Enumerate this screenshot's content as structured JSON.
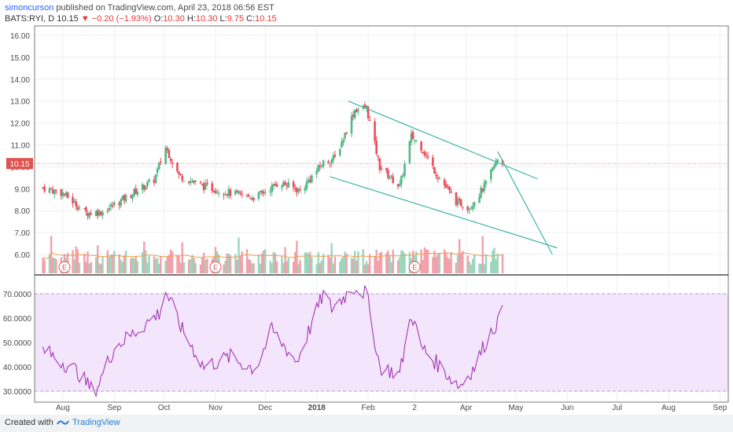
{
  "header": {
    "author": "simoncurson",
    "published": "published on TradingView.com, April 23, 2018 06:56 EST",
    "symbol": "BATS:RYI, D",
    "last": "10.15",
    "change": "−0.20 (−1.93%)",
    "o_label": "O:",
    "o_value": "10.30",
    "h_label": "H:",
    "h_value": "10.30",
    "l_label": "L:",
    "l_value": "9.75",
    "c_label": "C:",
    "c_value": "10.15"
  },
  "footer": {
    "created_with": "Created with",
    "brand": "TradingView"
  },
  "colors": {
    "up": "#53b987",
    "down": "#eb4d5c",
    "volume_up": "#9bd6bd",
    "volume_down": "#f2a0aa",
    "trendline": "#3cb5a5",
    "rsi": "#9c27b0",
    "rsi_band": "#f3e5fb",
    "ma": "#f0a04b"
  },
  "chart_data": [
    {
      "type": "candlestick",
      "title": "",
      "xlabel": "",
      "ylabel": "",
      "ylim": [
        5.2,
        16.4
      ],
      "yticks": [
        "16.00",
        "15.00",
        "14.00",
        "13.00",
        "12.00",
        "11.00",
        "10.00",
        "9.00",
        "8.00",
        "7.00",
        "6.00"
      ],
      "xticks": [
        "Aug",
        "Sep",
        "Oct",
        "Nov",
        "Dec",
        "2018",
        "Feb",
        "2",
        "Apr",
        "May",
        "Jun",
        "Jul",
        "Aug",
        "Sep"
      ],
      "last_price_label": "10.15",
      "earnings_markers": [
        "E",
        "E",
        "E"
      ],
      "earnings_marker_dates": [
        "2017-08-02",
        "2017-11-01",
        "2018-03-01"
      ],
      "close_anchors": [
        [
          "2017-07-20",
          9.05
        ],
        [
          "2017-08-01",
          8.8
        ],
        [
          "2017-08-15",
          7.9
        ],
        [
          "2017-08-25",
          7.95
        ],
        [
          "2017-09-10",
          8.7
        ],
        [
          "2017-09-25",
          9.4
        ],
        [
          "2017-10-02",
          10.9
        ],
        [
          "2017-10-10",
          9.6
        ],
        [
          "2017-10-25",
          9.1
        ],
        [
          "2017-11-10",
          8.8
        ],
        [
          "2017-11-25",
          8.6
        ],
        [
          "2017-12-10",
          9.3
        ],
        [
          "2017-12-22",
          8.9
        ],
        [
          "2018-01-05",
          10.2
        ],
        [
          "2018-01-12",
          10.4
        ],
        [
          "2018-01-24",
          12.6
        ],
        [
          "2018-01-31",
          12.7
        ],
        [
          "2018-02-08",
          10.0
        ],
        [
          "2018-02-20",
          9.1
        ],
        [
          "2018-02-27",
          11.4
        ],
        [
          "2018-03-05",
          10.9
        ],
        [
          "2018-03-14",
          9.7
        ],
        [
          "2018-03-26",
          8.4
        ],
        [
          "2018-04-03",
          8.15
        ],
        [
          "2018-04-12",
          9.1
        ],
        [
          "2018-04-20",
          10.35
        ],
        [
          "2018-04-23",
          10.15
        ]
      ],
      "rsi_anchors": [
        [
          "2017-07-20",
          47
        ],
        [
          "2017-08-10",
          38
        ],
        [
          "2017-08-20",
          29
        ],
        [
          "2017-09-01",
          48
        ],
        [
          "2017-09-15",
          55
        ],
        [
          "2017-09-28",
          62
        ],
        [
          "2017-10-02",
          71
        ],
        [
          "2017-10-12",
          55
        ],
        [
          "2017-10-25",
          40
        ],
        [
          "2017-11-10",
          44
        ],
        [
          "2017-11-25",
          39
        ],
        [
          "2017-12-05",
          55
        ],
        [
          "2017-12-20",
          42
        ],
        [
          "2018-01-05",
          70
        ],
        [
          "2018-01-10",
          64
        ],
        [
          "2018-01-24",
          73
        ],
        [
          "2018-01-31",
          70
        ],
        [
          "2018-02-08",
          40
        ],
        [
          "2018-02-20",
          37
        ],
        [
          "2018-02-27",
          62
        ],
        [
          "2018-03-05",
          48
        ],
        [
          "2018-03-15",
          41
        ],
        [
          "2018-03-28",
          32
        ],
        [
          "2018-04-06",
          40
        ],
        [
          "2018-04-14",
          52
        ],
        [
          "2018-04-23",
          62
        ]
      ],
      "trendlines": [
        {
          "from": [
            "2018-01-20",
            13.0
          ],
          "to": [
            "2018-05-14",
            9.45
          ]
        },
        {
          "from": [
            "2018-01-09",
            9.55
          ],
          "to": [
            "2018-05-26",
            6.3
          ]
        },
        {
          "from": [
            "2018-04-20",
            10.7
          ],
          "to": [
            "2018-05-23",
            6.0
          ]
        }
      ]
    },
    {
      "type": "line",
      "title": "",
      "ylim": [
        28,
        75
      ],
      "yticks": [
        "70.0000",
        "60.0000",
        "50.0000",
        "40.0000",
        "30.0000"
      ],
      "band": [
        30,
        70
      ]
    }
  ]
}
